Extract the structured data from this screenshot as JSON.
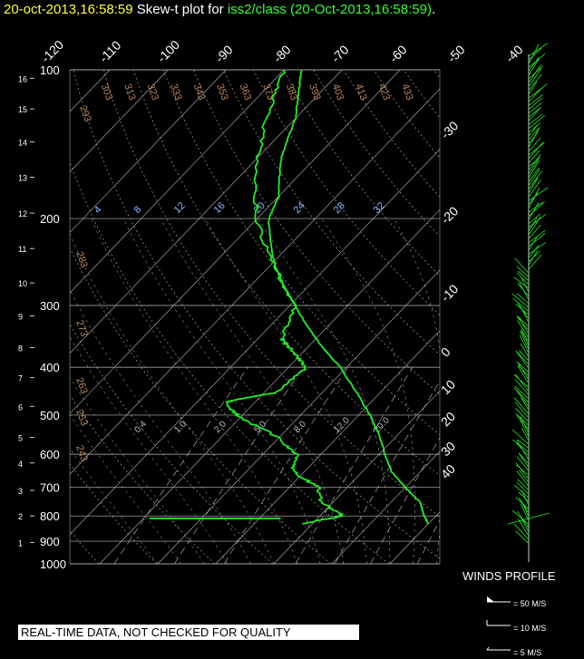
{
  "header": {
    "datetime": "20-oct-2013,16:58:59",
    "title_mid": " Skew-t plot for ",
    "title_platform": "iss2/class (20-Oct-2013,16:58:59)",
    "title_end": "."
  },
  "notice": "REAL-TIME DATA, NOT CHECKED FOR QUALITY",
  "winds_profile": {
    "title": "WINDS PROFILE",
    "legend": [
      "= 50 M/S",
      "= 10 M/S",
      "= 5 M/S"
    ]
  },
  "colors": {
    "background": "#000000",
    "sounding": "#22ee22",
    "grid": "#bbbbbb",
    "dry_adiabat": "#cc9966",
    "moist_adiabat": "#ff66ff",
    "mixing_ratio": "#88bbff",
    "barbs": "#22ee22",
    "title_date": "#ffff33"
  },
  "chart_data": {
    "type": "skew-t",
    "pressure_axis": {
      "ticks": [
        100,
        200,
        300,
        400,
        500,
        600,
        700,
        800,
        900,
        1000
      ],
      "range_hpa": [
        1000,
        100
      ],
      "scale": "log"
    },
    "height_axis_km": {
      "ticks": [
        16,
        15,
        14,
        13,
        12,
        11,
        10,
        9,
        8,
        7,
        6,
        5,
        4,
        3,
        2,
        1
      ]
    },
    "isotherm_labels_top": [
      "-120",
      "-110",
      "-100",
      "-90",
      "-80",
      "-70",
      "-60",
      "-50",
      "-40"
    ],
    "isotherm_labels_right": [
      "-30",
      "-20",
      "-10",
      "0",
      "10",
      "20",
      "30",
      "40"
    ],
    "dry_adiabat_labels": [
      "293",
      "303",
      "313",
      "323",
      "333",
      "343",
      "353",
      "363",
      "373",
      "383",
      "393",
      "403",
      "413",
      "423",
      "433",
      "283",
      "273",
      "263",
      "253",
      "243"
    ],
    "mixing_ratio_labels_upper": [
      "4",
      "8",
      "12",
      "16",
      "20",
      "24",
      "28",
      "32"
    ],
    "mixing_ratio_labels_lower": [
      "0.4",
      "1.0",
      "2.0",
      "5.0",
      "8.0",
      "12.0",
      "20.0"
    ],
    "series": [
      {
        "name": "temperature",
        "points": [
          [
            830,
            20
          ],
          [
            800,
            18
          ],
          [
            750,
            15
          ],
          [
            700,
            10
          ],
          [
            650,
            5
          ],
          [
            600,
            1
          ],
          [
            550,
            -3
          ],
          [
            500,
            -8
          ],
          [
            450,
            -14
          ],
          [
            400,
            -21
          ],
          [
            350,
            -30
          ],
          [
            300,
            -39
          ],
          [
            250,
            -49
          ],
          [
            200,
            -58
          ],
          [
            180,
            -60
          ],
          [
            150,
            -66
          ],
          [
            125,
            -70
          ],
          [
            110,
            -74
          ],
          [
            100,
            -77
          ]
        ]
      },
      {
        "name": "dewpoint",
        "points": [
          [
            830,
            -2
          ],
          [
            800,
            4
          ],
          [
            750,
            -2
          ],
          [
            700,
            -5
          ],
          [
            650,
            -12
          ],
          [
            600,
            -14
          ],
          [
            550,
            -21
          ],
          [
            500,
            -31
          ],
          [
            470,
            -35
          ],
          [
            450,
            -28
          ],
          [
            400,
            -27
          ],
          [
            370,
            -32
          ],
          [
            350,
            -36
          ],
          [
            300,
            -39
          ],
          [
            250,
            -49
          ],
          [
            200,
            -60
          ],
          [
            150,
            -70
          ],
          [
            120,
            -76
          ],
          [
            100,
            -80
          ]
        ]
      }
    ],
    "surface_segment": {
      "pressure": 830,
      "from": -12,
      "to": 18
    }
  }
}
